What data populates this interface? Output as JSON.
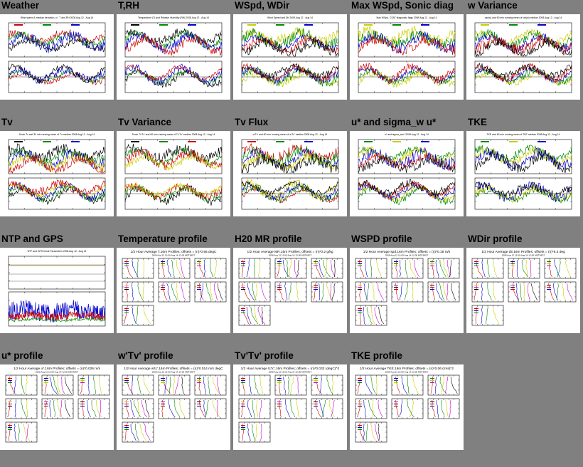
{
  "panels": [
    {
      "title": "Weather",
      "kind": "ts",
      "header": "Wind speed & median deviation, u*, T and RH 2008 Aug 12 - Aug 14",
      "colors": [
        "#cc0000",
        "#008800",
        "#0000cc",
        "#000000"
      ],
      "seed": 11
    },
    {
      "title": "T,RH",
      "kind": "ts",
      "header": "Temperature (T) and Relative Humidity (RH) 2008 Aug 12 - Aug 14",
      "colors": [
        "#000000",
        "#008800",
        "#0000cc",
        "#cc0000"
      ],
      "seed": 23
    },
    {
      "title": "WSpd, WDir",
      "kind": "ts",
      "header": "Wind Speed and Dir 2008 Aug 12 - Aug 14",
      "colors": [
        "#cccc00",
        "#008800",
        "#0000cc",
        "#cc0000",
        "#000000"
      ],
      "seed": 37
    },
    {
      "title": "Max WSpd, Sonic diag",
      "kind": "ts",
      "header": "Max WSpd, CSAT diagnostic flags 2008 Aug 12 - Aug 14",
      "colors": [
        "#cccc00",
        "#008800",
        "#0000cc",
        "#cc0000"
      ],
      "seed": 41
    },
    {
      "title": "w Variance",
      "kind": "ts",
      "header": "var(w) and 60 min running mean of var(w) median 2008 Aug 12 - Aug 14",
      "colors": [
        "#cccc00",
        "#008800",
        "#0000cc",
        "#cc0000",
        "#000000"
      ],
      "seed": 53
    },
    {
      "title": "Tv",
      "kind": "ts",
      "header": "Sonic Tv and 30 min running mean of Tv median 2008 Aug 12 - Aug 14",
      "colors": [
        "#000000",
        "#008800",
        "#0000cc",
        "#cccc00",
        "#cc0000"
      ],
      "seed": 61
    },
    {
      "title": "Tv Variance",
      "kind": "ts",
      "header": "Sonic Tv'Tv' and 60 min running mean of Tv'Tv' median 2008 Aug 12 - Aug 14",
      "colors": [
        "#000000",
        "#008800",
        "#cc0000",
        "#cccc00"
      ],
      "seed": 71
    },
    {
      "title": "Tv Flux",
      "kind": "ts",
      "header": "w'Tv' and 60 min running mean of w'Tv' median 2008 Aug 12 - Aug 14",
      "colors": [
        "#cc0000",
        "#008800",
        "#0000cc",
        "#cccc00",
        "#000000"
      ],
      "seed": 83
    },
    {
      "title": "u* and sigma_w u*",
      "kind": "ts",
      "header": "u* and sigma_w/u* 2008 Aug 12 - Aug 14",
      "colors": [
        "#008800",
        "#cccc00",
        "#0000cc",
        "#cc0000",
        "#000000"
      ],
      "seed": 97
    },
    {
      "title": "TKE",
      "kind": "ts",
      "header": "TKE and 60 min running mean of TKE median 2008 Aug 12 - Aug 14",
      "colors": [
        "#008800",
        "#cccc00",
        "#0000cc",
        "#000000"
      ],
      "seed": 101
    },
    {
      "title": "NTP and GPS",
      "kind": "ntp",
      "header": "NTP and GPS Clock Parameters 2008 Aug 12 - Aug 14",
      "colors": [
        "#0000cc",
        "#cc0000",
        "#008800"
      ],
      "seed": 113
    },
    {
      "title": "Temperature profile",
      "kind": "prof",
      "header": "1/2 Hour Average T.16m Profiles; offsets = (n)*0.56 degC",
      "colors": [
        "#cc0000",
        "#0000cc",
        "#008800",
        "#cccc00",
        "#cc00cc",
        "#000000"
      ],
      "seed": 127
    },
    {
      "title": "H20 MR profile",
      "kind": "prof",
      "header": "1/2 Hour Average MR.16m Profiles; offsets = (n)*0.2 g/kg",
      "colors": [
        "#cc0000",
        "#0000cc",
        "#008800",
        "#cccc00",
        "#cc00cc",
        "#000000"
      ],
      "seed": 131
    },
    {
      "title": "WSPD profile",
      "kind": "prof",
      "header": "1/2 Hour Average spd.16m Profiles; offsets = (n)*0.18 m/s",
      "colors": [
        "#cc0000",
        "#0000cc",
        "#008800",
        "#cccc00",
        "#cc00cc",
        "#000000"
      ],
      "seed": 137
    },
    {
      "title": "WDir profile",
      "kind": "prof",
      "header": "1/2 Hour Average dir.16m Profiles; offsets = (n)*6.4 deg",
      "colors": [
        "#cc0000",
        "#0000cc",
        "#008800",
        "#cccc00",
        "#cc00cc",
        "#000000"
      ],
      "seed": 139
    },
    {
      "title": "u* profile",
      "kind": "prof",
      "header": "1/2 Hour Average u*.16m Profiles; offsets = (n)*0.026 m/s",
      "colors": [
        "#cc0000",
        "#0000cc",
        "#008800",
        "#cccc00",
        "#cc00cc",
        "#000000"
      ],
      "seed": 149
    },
    {
      "title": "w'Tv' profile",
      "kind": "prof",
      "header": "1/2 Hour Average w'tc'.16m Profiles; offsets = (n)*0.014 m/s degC",
      "colors": [
        "#cc0000",
        "#0000cc",
        "#008800",
        "#cccc00",
        "#cc00cc",
        "#000000"
      ],
      "seed": 151
    },
    {
      "title": "Tv'Tv' profile",
      "kind": "prof",
      "header": "1/2 Hour Average tc'tc'.16m Profiles; offsets = (n)*0.032 (degC)^2",
      "colors": [
        "#cc0000",
        "#0000cc",
        "#008800",
        "#cccc00",
        "#cc00cc",
        "#000000"
      ],
      "seed": 157
    },
    {
      "title": "TKE profile",
      "kind": "prof",
      "header": "1/2 Hour Average TKE.16m Profiles; offsets = (n)*0.06 (m/s)^2",
      "colors": [
        "#cc0000",
        "#0000cc",
        "#008800",
        "#cccc00",
        "#cc00cc",
        "#000000"
      ],
      "seed": 163
    }
  ],
  "subheader": "2008 Aug 12 13:00-Aug 14 12:00 MDT/MDT"
}
